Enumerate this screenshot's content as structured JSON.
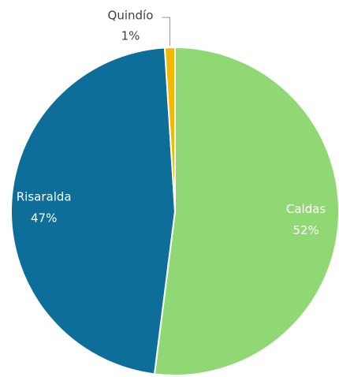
{
  "chart_data": {
    "type": "pie",
    "categories": [
      "Caldas",
      "Risaralda",
      "Quindío"
    ],
    "values": [
      52,
      47,
      1
    ],
    "value_labels": [
      "52%",
      "47%",
      "1%"
    ],
    "colors": [
      "#8fd873",
      "#0e6e9a",
      "#f5b800"
    ]
  }
}
